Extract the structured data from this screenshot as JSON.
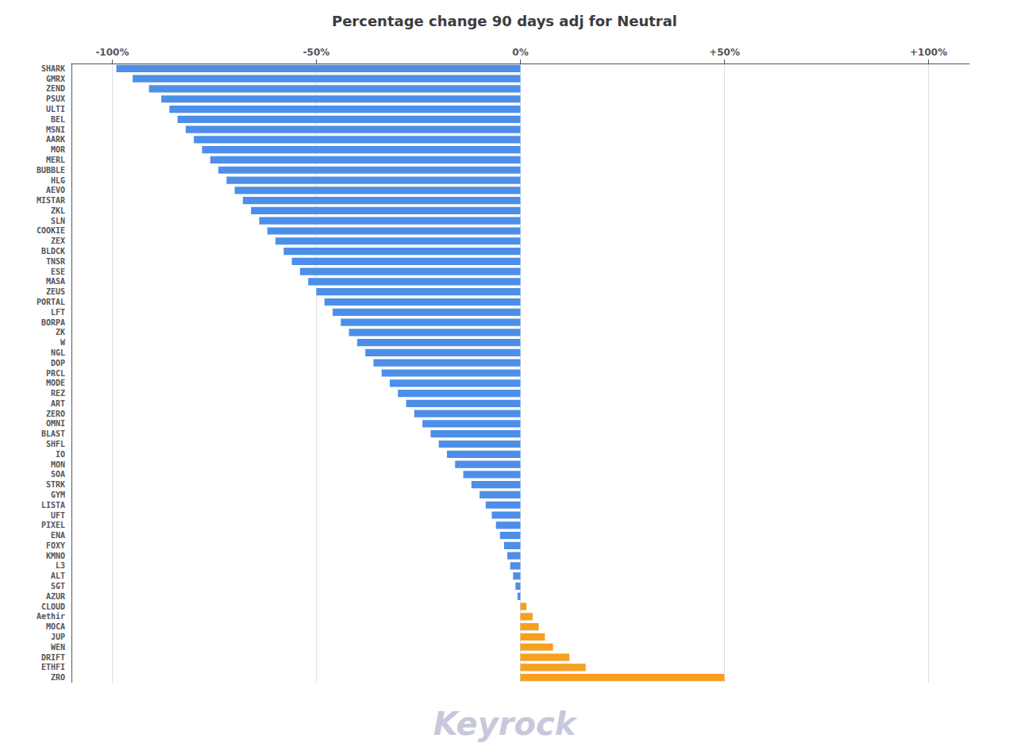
{
  "chart_data": {
    "type": "bar",
    "orientation": "horizontal",
    "title": "Percentage change 90 days adj for Neutral",
    "annotations": [
      "Keyrock"
    ],
    "categories": [
      "SHARK",
      "GMRX",
      "ZEND",
      "PSUX",
      "ULTI",
      "BEL",
      "MSNI",
      "AARK",
      "MOR",
      "MERL",
      "BUBBLE",
      "HLG",
      "AEVO",
      "MISTAR",
      "ZKL",
      "SLN",
      "COOKIE",
      "ZEX",
      "BLDCK",
      "TNSR",
      "ESE",
      "MASA",
      "ZEUS",
      "PORTAL",
      "LFT",
      "BORPA",
      "ZK",
      "W",
      "NGL",
      "DOP",
      "PRCL",
      "MODE",
      "REZ",
      "ART",
      "ZERO",
      "OMNI",
      "BLAST",
      "SHFL",
      "IO",
      "MON",
      "SOA",
      "STRK",
      "GYM",
      "LISTA",
      "UFT",
      "PIXEL",
      "ENA",
      "FOXY",
      "KMNO",
      "L3",
      "ALT",
      "SGT",
      "AZUR",
      "CLOUD",
      "Aethir",
      "MOCA",
      "JUP",
      "WEN",
      "DRIFT",
      "ETHFI",
      "ZRO"
    ],
    "values": [
      -99,
      -95,
      -91,
      -88,
      -86,
      -84,
      -82,
      -80,
      -78,
      -76,
      -74,
      -72,
      -70,
      -68,
      -66,
      -64,
      -62,
      -60,
      -58,
      -56,
      -54,
      -52,
      -50,
      -48,
      -46,
      -44,
      -42,
      -40,
      -38,
      -36,
      -34,
      -32,
      -30,
      -28,
      -26,
      -24,
      -22,
      -20,
      -18,
      -16,
      -14,
      -12,
      -10,
      -8.5,
      -7,
      -6,
      -5,
      -4,
      -3.2,
      -2.5,
      -1.8,
      -1.2,
      -0.7,
      1.5,
      3,
      4.5,
      6,
      8,
      12,
      16,
      50
    ],
    "colors": [
      "#4d8fe8",
      "#4d8fe8",
      "#4d8fe8",
      "#4d8fe8",
      "#4d8fe8",
      "#4d8fe8",
      "#4d8fe8",
      "#4d8fe8",
      "#4d8fe8",
      "#4d8fe8",
      "#4d8fe8",
      "#4d8fe8",
      "#4d8fe8",
      "#4d8fe8",
      "#4d8fe8",
      "#4d8fe8",
      "#4d8fe8",
      "#4d8fe8",
      "#4d8fe8",
      "#4d8fe8",
      "#4d8fe8",
      "#4d8fe8",
      "#4d8fe8",
      "#4d8fe8",
      "#4d8fe8",
      "#4d8fe8",
      "#4d8fe8",
      "#4d8fe8",
      "#4d8fe8",
      "#4d8fe8",
      "#4d8fe8",
      "#4d8fe8",
      "#4d8fe8",
      "#4d8fe8",
      "#4d8fe8",
      "#4d8fe8",
      "#4d8fe8",
      "#4d8fe8",
      "#4d8fe8",
      "#4d8fe8",
      "#4d8fe8",
      "#4d8fe8",
      "#4d8fe8",
      "#4d8fe8",
      "#4d8fe8",
      "#4d8fe8",
      "#4d8fe8",
      "#4d8fe8",
      "#4d8fe8",
      "#4d8fe8",
      "#4d8fe8",
      "#4d8fe8",
      "#4d8fe8",
      "#f5a020",
      "#f5a020",
      "#f5a020",
      "#f5a020",
      "#f5a020",
      "#f5a020",
      "#f5a020",
      "#f5a020"
    ],
    "xlim": [
      -110,
      110
    ],
    "xticks": [
      {
        "value": -100,
        "label": "-100%"
      },
      {
        "value": -50,
        "label": "-50%"
      },
      {
        "value": 0,
        "label": "0%"
      },
      {
        "value": 50,
        "label": "+50%"
      },
      {
        "value": 100,
        "label": "+100%"
      }
    ],
    "grid": true
  }
}
